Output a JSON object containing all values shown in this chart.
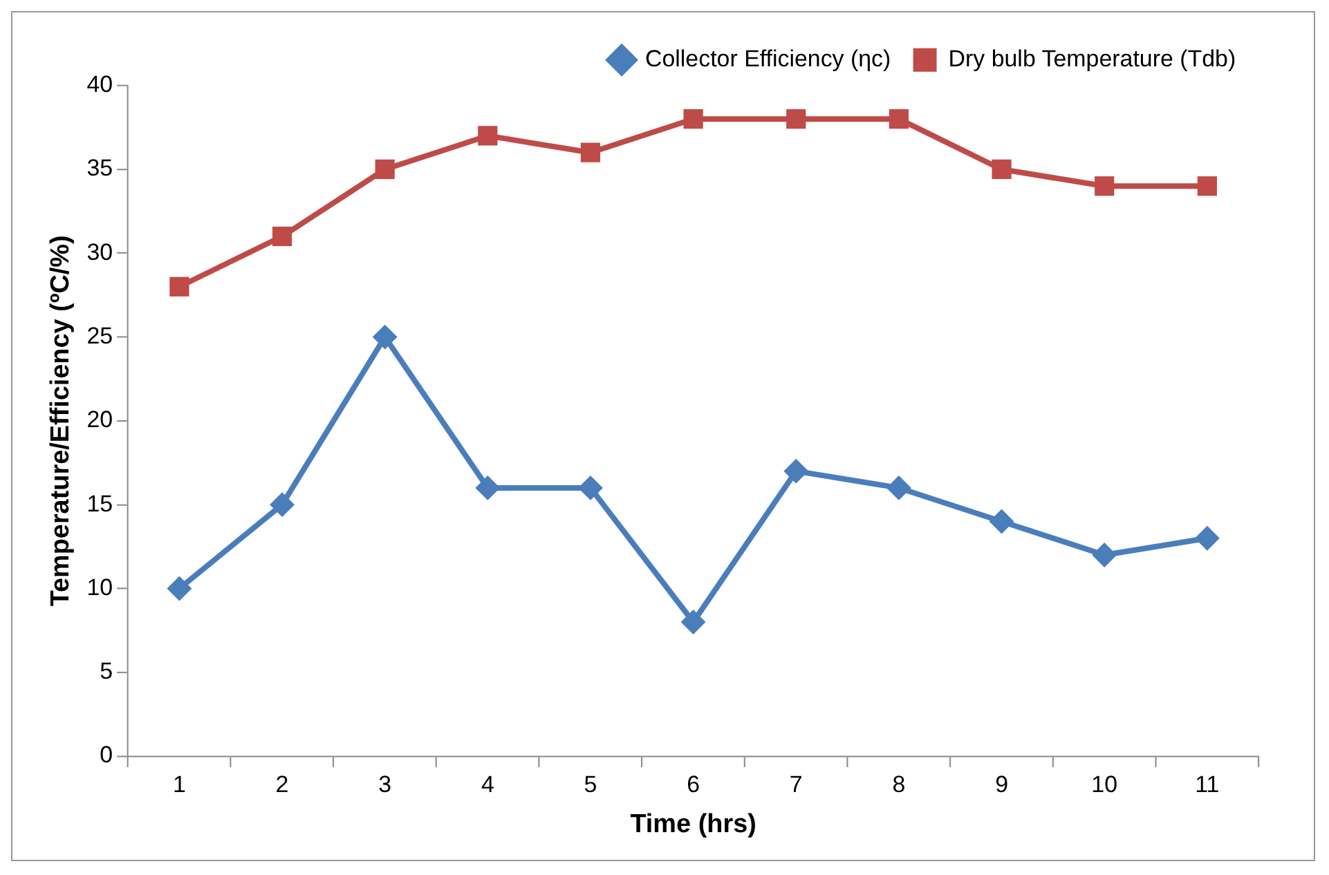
{
  "chart_data": {
    "type": "line",
    "xlabel": "Time (hrs)",
    "ylabel": "Temperature/Efficiency (ºC/%)",
    "categories": [
      "1",
      "2",
      "3",
      "4",
      "5",
      "6",
      "7",
      "8",
      "9",
      "10",
      "11"
    ],
    "series": [
      {
        "name": "Collector Efficiency (ηc)",
        "color": "#4a7ebb",
        "marker": "diamond",
        "values": [
          10,
          15,
          25,
          16,
          16,
          8,
          17,
          16,
          14,
          12,
          13
        ]
      },
      {
        "name": "Dry bulb Temperature (Tdb)",
        "color": "#be4b48",
        "marker": "square",
        "values": [
          28,
          31,
          35,
          37,
          36,
          38,
          38,
          38,
          35,
          34,
          34
        ]
      }
    ],
    "ylim": [
      0,
      40
    ],
    "yticks": [
      0,
      5,
      10,
      15,
      20,
      25,
      30,
      35,
      40
    ],
    "grid": false,
    "legend": "top right",
    "line_style": "solid"
  }
}
